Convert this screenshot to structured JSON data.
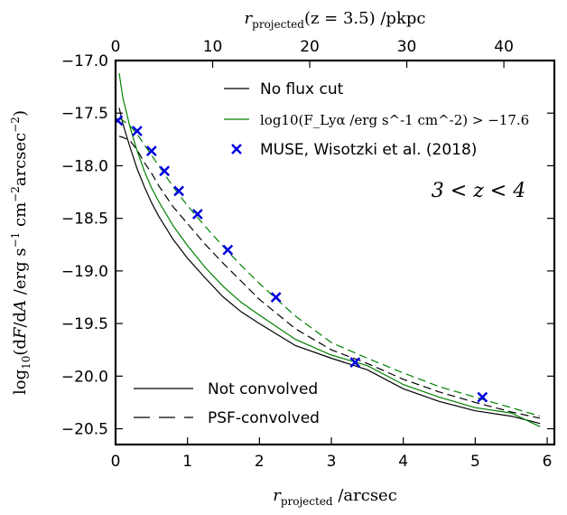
{
  "chart_data": {
    "type": "line",
    "xlabel": "r_projected /arcsec",
    "xlabel_parts": {
      "main": "r",
      "sub": "projected",
      "unit": " /arcsec"
    },
    "top_xlabel": "r_projected(z = 3.5) /pkpc",
    "top_xlabel_parts": {
      "main": "r",
      "sub": "projected",
      "rest": "(z = 3.5) /pkpc"
    },
    "ylabel": "log10(dF/dA /erg s^-1 cm^-2 arcsec^-2)",
    "xlim": [
      0,
      6.1
    ],
    "ylim": [
      -20.65,
      -17.0
    ],
    "top_xlim": [
      0,
      45.2
    ],
    "xticks": [
      0,
      1,
      2,
      3,
      4,
      5,
      6
    ],
    "yticks": [
      -17.0,
      -17.5,
      -18.0,
      -18.5,
      -19.0,
      -19.5,
      -20.0,
      -20.5
    ],
    "yticklabels": [
      "−17.0",
      "−17.5",
      "−18.0",
      "−18.5",
      "−19.0",
      "−19.5",
      "−20.0",
      "−20.5"
    ],
    "top_xticks": [
      0,
      10,
      20,
      30,
      40
    ],
    "annotation": "3 < z < 4",
    "legend_upper": [
      {
        "label": "No flux cut",
        "color": "#000000"
      },
      {
        "label": "log10(F_Lyα /erg s^-1 cm^-2) > −17.6",
        "color": "#008000"
      },
      {
        "label": "MUSE, Wisotzki et al. (2018)",
        "color": "#0000e0",
        "marker": "x"
      }
    ],
    "legend_lower": [
      {
        "label": "Not convolved",
        "style": "solid"
      },
      {
        "label": "PSF-convolved",
        "style": "dashed"
      }
    ],
    "series": [
      {
        "color": "#000000",
        "style": "solid",
        "x": [
          0.05,
          0.1,
          0.2,
          0.3,
          0.4,
          0.5,
          0.6,
          0.8,
          1.0,
          1.25,
          1.5,
          1.75,
          2.0,
          2.5,
          3.0,
          3.5,
          4.0,
          4.5,
          5.0,
          5.5,
          5.9
        ],
        "y": [
          -17.45,
          -17.6,
          -17.82,
          -18.03,
          -18.2,
          -18.35,
          -18.48,
          -18.7,
          -18.88,
          -19.07,
          -19.25,
          -19.39,
          -19.5,
          -19.71,
          -19.83,
          -19.94,
          -20.12,
          -20.24,
          -20.33,
          -20.38,
          -20.45
        ]
      },
      {
        "color": "#000000",
        "style": "dashed",
        "x": [
          0.05,
          0.1,
          0.2,
          0.3,
          0.4,
          0.5,
          0.6,
          0.8,
          1.0,
          1.25,
          1.5,
          1.75,
          2.0,
          2.5,
          3.0,
          3.5,
          4.0,
          4.5,
          5.0,
          5.5,
          5.9
        ],
        "y": [
          -17.72,
          -17.73,
          -17.76,
          -17.85,
          -17.97,
          -18.07,
          -18.19,
          -18.39,
          -18.55,
          -18.75,
          -18.93,
          -19.1,
          -19.27,
          -19.55,
          -19.75,
          -19.88,
          -20.03,
          -20.15,
          -20.25,
          -20.34,
          -20.4
        ]
      },
      {
        "color": "#008000",
        "style": "solid",
        "x": [
          0.05,
          0.1,
          0.2,
          0.3,
          0.4,
          0.5,
          0.6,
          0.8,
          1.0,
          1.25,
          1.5,
          1.75,
          2.0,
          2.5,
          3.0,
          3.5,
          4.0,
          4.5,
          5.0,
          5.5,
          5.9
        ],
        "y": [
          -17.12,
          -17.35,
          -17.63,
          -17.86,
          -18.05,
          -18.21,
          -18.34,
          -18.57,
          -18.76,
          -18.97,
          -19.15,
          -19.3,
          -19.42,
          -19.65,
          -19.8,
          -19.9,
          -20.08,
          -20.2,
          -20.3,
          -20.35,
          -20.48
        ]
      },
      {
        "color": "#008000",
        "style": "dashed",
        "x": [
          0.05,
          0.1,
          0.2,
          0.3,
          0.4,
          0.5,
          0.6,
          0.8,
          1.0,
          1.25,
          1.5,
          1.75,
          2.0,
          2.5,
          3.0,
          3.5,
          4.0,
          4.5,
          5.0,
          5.5,
          5.9
        ],
        "y": [
          -17.55,
          -17.57,
          -17.62,
          -17.7,
          -17.8,
          -17.9,
          -18.0,
          -18.2,
          -18.38,
          -18.58,
          -18.77,
          -18.95,
          -19.12,
          -19.43,
          -19.68,
          -19.83,
          -19.97,
          -20.1,
          -20.2,
          -20.3,
          -20.38
        ]
      }
    ],
    "scatter": {
      "color": "#0000e0",
      "marker": "x",
      "x": [
        0.03,
        0.3,
        0.5,
        0.68,
        0.88,
        1.14,
        1.56,
        2.23,
        3.33,
        5.1
      ],
      "y": [
        -17.57,
        -17.67,
        -17.86,
        -18.05,
        -18.24,
        -18.46,
        -18.8,
        -19.25,
        -19.87,
        -20.2
      ]
    }
  }
}
